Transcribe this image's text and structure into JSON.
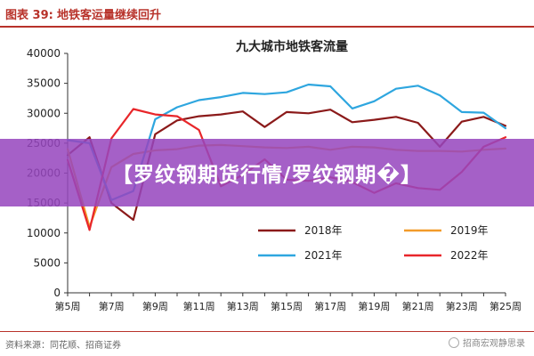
{
  "figure": {
    "number": "图表 39:",
    "caption": "地铁客运量继续回升",
    "source": "资料来源：同花顺、招商证券",
    "watermark": "招商宏观静思录"
  },
  "banner": {
    "text": "【罗纹钢期货行情/罗纹钢期�】"
  },
  "colors": {
    "accent": "#b8322a",
    "banner_bg": "#9646be"
  },
  "chart_data": {
    "type": "line",
    "title": "九大城市地铁客流量",
    "xlabel": "",
    "ylabel": "",
    "ylim": [
      0,
      40000
    ],
    "yticks": [
      0,
      5000,
      10000,
      15000,
      20000,
      25000,
      30000,
      35000,
      40000
    ],
    "ytick_labels": [
      "0",
      "5000",
      "10000",
      "15000",
      "20000",
      "25000",
      "30000",
      "35000",
      "40000"
    ],
    "x_ticks": [
      "第5周",
      "第7周",
      "第9周",
      "第11周",
      "第13周",
      "第15周",
      "第17周",
      "第19周",
      "第21周",
      "第23周",
      "第25周"
    ],
    "x": [
      5,
      6,
      7,
      8,
      9,
      10,
      11,
      12,
      13,
      14,
      15,
      16,
      17,
      18,
      19,
      20,
      21,
      22,
      23,
      24,
      25
    ],
    "grid": false,
    "legend_position": "bottom-right",
    "series": [
      {
        "name": "2018年",
        "color": "#8b1a1a",
        "values": [
          23000,
          26000,
          15000,
          12200,
          26500,
          28800,
          29500,
          29800,
          30300,
          27700,
          30200,
          30000,
          30600,
          28500,
          28900,
          29400,
          28400,
          24400,
          28600,
          29400,
          27900
        ]
      },
      {
        "name": "2019年",
        "color": "#f29b2a",
        "values": [
          24000,
          11000,
          21000,
          23200,
          23800,
          24000,
          24600,
          24700,
          24500,
          24300,
          24200,
          24400,
          23900,
          24400,
          24300,
          23900,
          23700,
          23700,
          23600,
          23900,
          24100
        ]
      },
      {
        "name": "2021年",
        "color": "#2ea6df",
        "values": [
          25500,
          25000,
          15500,
          17000,
          29000,
          31000,
          32200,
          32700,
          33400,
          33200,
          33500,
          34800,
          34500,
          30800,
          32000,
          34100,
          34600,
          33000,
          30200,
          30100,
          27500
        ]
      },
      {
        "name": "2022年",
        "color": "#e8262a",
        "values": [
          22200,
          10500,
          25800,
          30700,
          29800,
          29500,
          27200,
          17800,
          19700,
          22300,
          18900,
          18700,
          19300,
          18500,
          16700,
          18300,
          17500,
          17200,
          20200,
          24400,
          26000
        ]
      }
    ]
  }
}
